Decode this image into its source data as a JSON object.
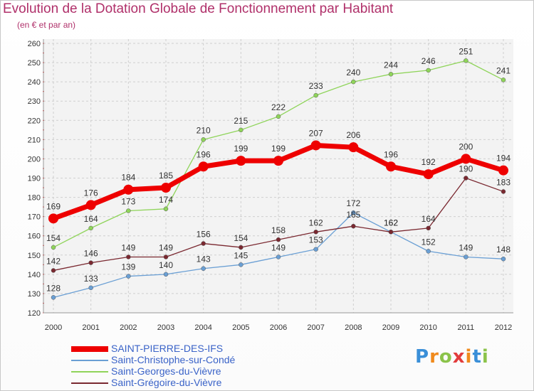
{
  "title": "Evolution de la Dotation Globale de Fonctionnement par Habitant",
  "subtitle": "(en € et par an)",
  "logo": {
    "letters": [
      "P",
      "r",
      "o",
      "x",
      "i",
      "t",
      "i"
    ],
    "colors": [
      "#3a8fd8",
      "#f08a1c",
      "#8bc34a",
      "#e23c3c",
      "#f08a1c",
      "#3a8fd8",
      "#8bc34a"
    ]
  },
  "chart_data": {
    "type": "line",
    "title": "Evolution de la Dotation Globale de Fonctionnement par Habitant",
    "ylabel": "(en € et par an)",
    "xlabel": "",
    "x": [
      "2000",
      "2001",
      "2002",
      "2003",
      "2004",
      "2005",
      "2006",
      "2007",
      "2008",
      "2009",
      "2010",
      "2011",
      "2012"
    ],
    "ylim": [
      120,
      260
    ],
    "yticks": [
      120,
      130,
      140,
      150,
      160,
      170,
      180,
      190,
      200,
      210,
      220,
      230,
      240,
      250,
      260
    ],
    "grid": true,
    "legend_position": "bottom",
    "series": [
      {
        "name": "SAINT-PIERRE-DES-IFS",
        "color": "#ee0000",
        "width": 7,
        "marker": 7,
        "values": [
          169,
          176,
          184,
          185,
          196,
          199,
          199,
          207,
          206,
          196,
          192,
          200,
          194
        ]
      },
      {
        "name": "Saint-Christophe-sur-Condé",
        "color": "#6a9fd4",
        "width": 1.3,
        "marker": 3,
        "values": [
          128,
          133,
          139,
          140,
          143,
          145,
          149,
          153,
          172,
          162,
          152,
          149,
          148
        ]
      },
      {
        "name": "Saint-Georges-du-Vièvre",
        "color": "#8fd45a",
        "width": 1.3,
        "marker": 3,
        "values": [
          154,
          164,
          173,
          174,
          210,
          215,
          222,
          233,
          240,
          244,
          246,
          251,
          241
        ]
      },
      {
        "name": "Saint-Grégoire-du-Vièvre",
        "color": "#7a2830",
        "width": 1.3,
        "marker": 3,
        "values": [
          142,
          146,
          149,
          149,
          156,
          154,
          158,
          162,
          165,
          162,
          164,
          190,
          183
        ]
      }
    ]
  }
}
